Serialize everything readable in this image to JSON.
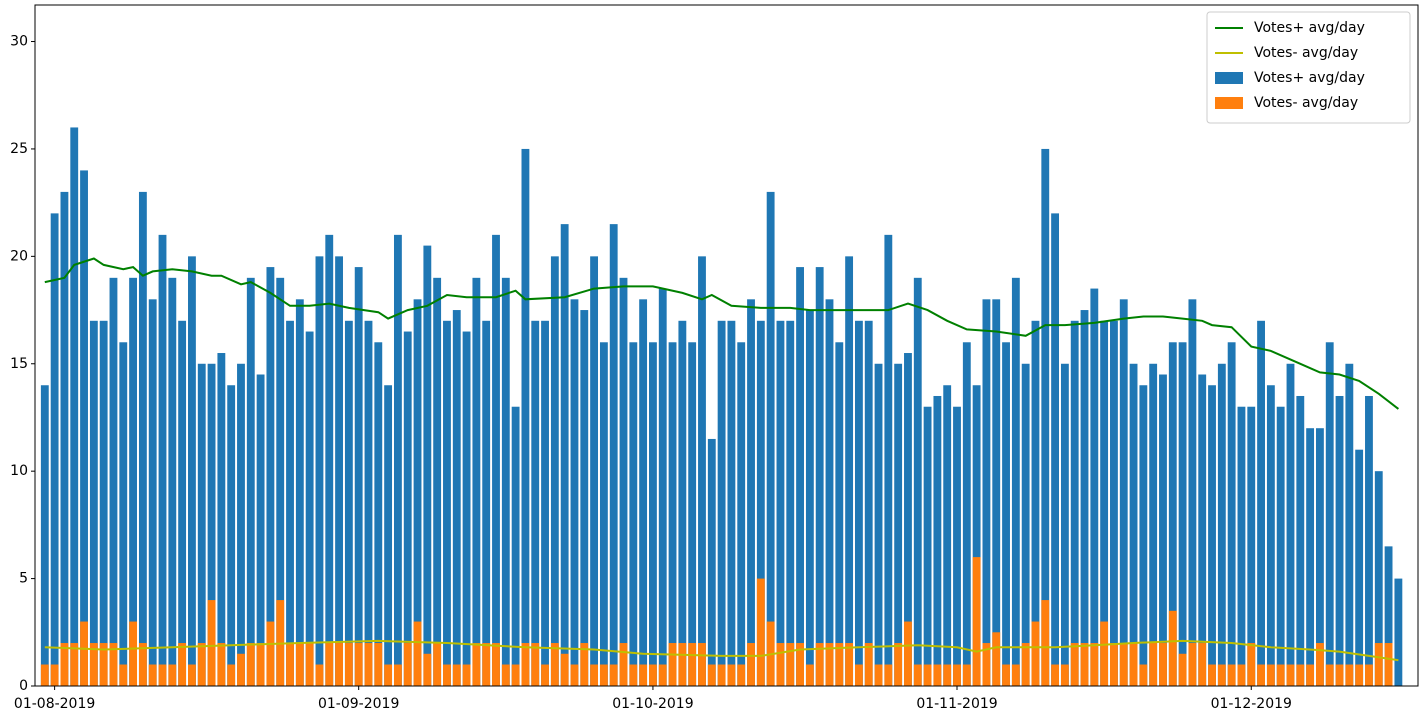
{
  "chart_data": {
    "type": "bar",
    "legend": "upper right",
    "xlim": [
      "30-07-2019",
      "18-12-2019"
    ],
    "xticks": [
      "01-08-2019",
      "01-09-2019",
      "01-10-2019",
      "01-11-2019",
      "01-12-2019"
    ],
    "ylim": [
      0,
      31.7
    ],
    "yticks": [
      0,
      5,
      10,
      15,
      20,
      25,
      30
    ],
    "series": [
      {
        "name": "Votes+ avg/day",
        "type": "line",
        "color": "#008000",
        "x": [
          "31-07-2019",
          "02-08-2019",
          "03-08-2019",
          "05-08-2019",
          "06-08-2019",
          "08-08-2019",
          "09-08-2019",
          "10-08-2019",
          "11-08-2019",
          "13-08-2019",
          "15-08-2019",
          "17-08-2019",
          "18-08-2019",
          "20-08-2019",
          "21-08-2019",
          "23-08-2019",
          "25-08-2019",
          "27-08-2019",
          "29-08-2019",
          "31-08-2019",
          "03-09-2019",
          "04-09-2019",
          "06-09-2019",
          "08-09-2019",
          "10-09-2019",
          "12-09-2019",
          "15-09-2019",
          "17-09-2019",
          "18-09-2019",
          "22-09-2019",
          "25-09-2019",
          "28-09-2019",
          "01-10-2019",
          "04-10-2019",
          "06-10-2019",
          "07-10-2019",
          "09-10-2019",
          "12-10-2019",
          "15-10-2019",
          "17-10-2019",
          "20-10-2019",
          "23-10-2019",
          "25-10-2019",
          "27-10-2019",
          "29-10-2019",
          "31-10-2019",
          "02-11-2019",
          "05-11-2019",
          "08-11-2019",
          "10-11-2019",
          "12-11-2019",
          "15-11-2019",
          "18-11-2019",
          "20-11-2019",
          "22-11-2019",
          "24-11-2019",
          "26-11-2019",
          "27-11-2019",
          "29-11-2019",
          "01-12-2019",
          "03-12-2019",
          "06-12-2019",
          "08-12-2019",
          "10-12-2019",
          "12-12-2019",
          "14-12-2019",
          "16-12-2019"
        ],
        "values": [
          18.8,
          19.0,
          19.6,
          19.9,
          19.6,
          19.4,
          19.5,
          19.1,
          19.3,
          19.4,
          19.3,
          19.1,
          19.1,
          18.7,
          18.8,
          18.3,
          17.7,
          17.7,
          17.8,
          17.6,
          17.4,
          17.1,
          17.5,
          17.7,
          18.2,
          18.1,
          18.1,
          18.4,
          18.0,
          18.1,
          18.5,
          18.6,
          18.6,
          18.3,
          18.0,
          18.2,
          17.7,
          17.6,
          17.6,
          17.5,
          17.5,
          17.5,
          17.5,
          17.8,
          17.5,
          17.0,
          16.6,
          16.5,
          16.3,
          16.8,
          16.8,
          16.9,
          17.1,
          17.2,
          17.2,
          17.1,
          17.0,
          16.8,
          16.7,
          15.8,
          15.6,
          15.0,
          14.6,
          14.5,
          14.2,
          13.6,
          12.9
        ]
      },
      {
        "name": "Votes- avg/day",
        "type": "line",
        "color": "#bfbf00",
        "x": [
          "31-07-2019",
          "06-08-2019",
          "13-08-2019",
          "19-08-2019",
          "26-08-2019",
          "03-09-2019",
          "10-09-2019",
          "18-09-2019",
          "25-09-2019",
          "30-09-2019",
          "08-10-2019",
          "12-10-2019",
          "16-10-2019",
          "22-10-2019",
          "28-10-2019",
          "01-11-2019",
          "03-11-2019",
          "05-11-2019",
          "11-11-2019",
          "15-11-2019",
          "19-11-2019",
          "24-11-2019",
          "29-11-2019",
          "03-12-2019",
          "07-12-2019",
          "10-12-2019",
          "13-12-2019",
          "16-12-2019"
        ],
        "values": [
          1.8,
          1.7,
          1.8,
          1.9,
          2.0,
          2.1,
          2.0,
          1.8,
          1.7,
          1.5,
          1.4,
          1.4,
          1.7,
          1.8,
          1.9,
          1.8,
          1.6,
          1.8,
          1.8,
          1.9,
          2.0,
          2.1,
          2.0,
          1.8,
          1.7,
          1.6,
          1.4,
          1.2
        ]
      },
      {
        "name": "Votes+ avg/day",
        "type": "bar",
        "color": "#1f77b4",
        "x": [
          "31-07-2019",
          "01-08-2019",
          "02-08-2019",
          "03-08-2019",
          "04-08-2019",
          "05-08-2019",
          "06-08-2019",
          "07-08-2019",
          "08-08-2019",
          "09-08-2019",
          "10-08-2019",
          "11-08-2019",
          "12-08-2019",
          "13-08-2019",
          "14-08-2019",
          "15-08-2019",
          "16-08-2019",
          "17-08-2019",
          "18-08-2019",
          "19-08-2019",
          "20-08-2019",
          "21-08-2019",
          "22-08-2019",
          "23-08-2019",
          "24-08-2019",
          "25-08-2019",
          "26-08-2019",
          "27-08-2019",
          "28-08-2019",
          "29-08-2019",
          "30-08-2019",
          "31-08-2019",
          "01-09-2019",
          "02-09-2019",
          "03-09-2019",
          "04-09-2019",
          "05-09-2019",
          "06-09-2019",
          "07-09-2019",
          "08-09-2019",
          "09-09-2019",
          "10-09-2019",
          "11-09-2019",
          "12-09-2019",
          "13-09-2019",
          "14-09-2019",
          "15-09-2019",
          "16-09-2019",
          "17-09-2019",
          "18-09-2019",
          "19-09-2019",
          "20-09-2019",
          "21-09-2019",
          "22-09-2019",
          "23-09-2019",
          "24-09-2019",
          "25-09-2019",
          "26-09-2019",
          "27-09-2019",
          "28-09-2019",
          "29-09-2019",
          "30-09-2019",
          "01-10-2019",
          "02-10-2019",
          "03-10-2019",
          "04-10-2019",
          "05-10-2019",
          "06-10-2019",
          "07-10-2019",
          "08-10-2019",
          "09-10-2019",
          "10-10-2019",
          "11-10-2019",
          "12-10-2019",
          "13-10-2019",
          "14-10-2019",
          "15-10-2019",
          "16-10-2019",
          "17-10-2019",
          "18-10-2019",
          "19-10-2019",
          "20-10-2019",
          "21-10-2019",
          "22-10-2019",
          "23-10-2019",
          "24-10-2019",
          "25-10-2019",
          "26-10-2019",
          "27-10-2019",
          "28-10-2019",
          "29-10-2019",
          "30-10-2019",
          "31-10-2019",
          "01-11-2019",
          "02-11-2019",
          "03-11-2019",
          "04-11-2019",
          "05-11-2019",
          "06-11-2019",
          "07-11-2019",
          "08-11-2019",
          "09-11-2019",
          "10-11-2019",
          "11-11-2019",
          "12-11-2019",
          "13-11-2019",
          "14-11-2019",
          "15-11-2019",
          "16-11-2019",
          "17-11-2019",
          "18-11-2019",
          "19-11-2019",
          "20-11-2019",
          "21-11-2019",
          "22-11-2019",
          "23-11-2019",
          "24-11-2019",
          "25-11-2019",
          "26-11-2019",
          "27-11-2019",
          "28-11-2019",
          "29-11-2019",
          "30-11-2019",
          "01-12-2019",
          "02-12-2019",
          "03-12-2019",
          "04-12-2019",
          "05-12-2019",
          "06-12-2019",
          "07-12-2019",
          "08-12-2019",
          "09-12-2019",
          "10-12-2019",
          "11-12-2019",
          "12-12-2019",
          "13-12-2019",
          "14-12-2019",
          "15-12-2019",
          "16-12-2019"
        ],
        "values": [
          14,
          22,
          23,
          26,
          24,
          17,
          17,
          19,
          16,
          19,
          23,
          18,
          21,
          19,
          17,
          20,
          15,
          15,
          15.5,
          14,
          15,
          19,
          14.5,
          19.5,
          19,
          17,
          18,
          16.5,
          20,
          21,
          20,
          17,
          19.5,
          17,
          16,
          14,
          21,
          16.5,
          18,
          20.5,
          19,
          17,
          17.5,
          16.5,
          19,
          17,
          21,
          19,
          13,
          25,
          17,
          17,
          20,
          21.5,
          18,
          17.5,
          20,
          16,
          21.5,
          19,
          16,
          18,
          16,
          18.5,
          16,
          17,
          16,
          20,
          11.5,
          17,
          17,
          16,
          18,
          17,
          23,
          17,
          17,
          19.5,
          17.5,
          19.5,
          18,
          16,
          20,
          17,
          17,
          15,
          21,
          15,
          15.5,
          19,
          13,
          13.5,
          14,
          13,
          16,
          14,
          18,
          18,
          16,
          19,
          15,
          17,
          25,
          22,
          15,
          17,
          17.5,
          18.5,
          17,
          17,
          18,
          15,
          14,
          15,
          14.5,
          16,
          16,
          18,
          14.5,
          14,
          15,
          16,
          13,
          13,
          17,
          14,
          13,
          15,
          13.5,
          12,
          12,
          16,
          13.5,
          15,
          11,
          13.5,
          10,
          6.5,
          5
        ]
      },
      {
        "name": "Votes- avg/day",
        "type": "bar",
        "color": "#ff7f0e",
        "x": [
          "31-07-2019",
          "01-08-2019",
          "02-08-2019",
          "03-08-2019",
          "04-08-2019",
          "05-08-2019",
          "06-08-2019",
          "07-08-2019",
          "08-08-2019",
          "09-08-2019",
          "10-08-2019",
          "11-08-2019",
          "12-08-2019",
          "13-08-2019",
          "14-08-2019",
          "15-08-2019",
          "16-08-2019",
          "17-08-2019",
          "18-08-2019",
          "19-08-2019",
          "20-08-2019",
          "21-08-2019",
          "22-08-2019",
          "23-08-2019",
          "24-08-2019",
          "25-08-2019",
          "26-08-2019",
          "27-08-2019",
          "28-08-2019",
          "29-08-2019",
          "30-08-2019",
          "31-08-2019",
          "01-09-2019",
          "02-09-2019",
          "03-09-2019",
          "04-09-2019",
          "05-09-2019",
          "06-09-2019",
          "07-09-2019",
          "08-09-2019",
          "09-09-2019",
          "10-09-2019",
          "11-09-2019",
          "12-09-2019",
          "13-09-2019",
          "14-09-2019",
          "15-09-2019",
          "16-09-2019",
          "17-09-2019",
          "18-09-2019",
          "19-09-2019",
          "20-09-2019",
          "21-09-2019",
          "22-09-2019",
          "23-09-2019",
          "24-09-2019",
          "25-09-2019",
          "26-09-2019",
          "27-09-2019",
          "28-09-2019",
          "29-09-2019",
          "30-09-2019",
          "01-10-2019",
          "02-10-2019",
          "03-10-2019",
          "04-10-2019",
          "05-10-2019",
          "06-10-2019",
          "07-10-2019",
          "08-10-2019",
          "09-10-2019",
          "10-10-2019",
          "11-10-2019",
          "12-10-2019",
          "13-10-2019",
          "14-10-2019",
          "15-10-2019",
          "16-10-2019",
          "17-10-2019",
          "18-10-2019",
          "19-10-2019",
          "20-10-2019",
          "21-10-2019",
          "22-10-2019",
          "23-10-2019",
          "24-10-2019",
          "25-10-2019",
          "26-10-2019",
          "27-10-2019",
          "28-10-2019",
          "29-10-2019",
          "30-10-2019",
          "31-10-2019",
          "01-11-2019",
          "02-11-2019",
          "03-11-2019",
          "04-11-2019",
          "05-11-2019",
          "06-11-2019",
          "07-11-2019",
          "08-11-2019",
          "09-11-2019",
          "10-11-2019",
          "11-11-2019",
          "12-11-2019",
          "13-11-2019",
          "14-11-2019",
          "15-11-2019",
          "16-11-2019",
          "17-11-2019",
          "18-11-2019",
          "19-11-2019",
          "20-11-2019",
          "21-11-2019",
          "22-11-2019",
          "23-11-2019",
          "24-11-2019",
          "25-11-2019",
          "26-11-2019",
          "27-11-2019",
          "28-11-2019",
          "29-11-2019",
          "30-11-2019",
          "01-12-2019",
          "02-12-2019",
          "03-12-2019",
          "04-12-2019",
          "05-12-2019",
          "06-12-2019",
          "07-12-2019",
          "08-12-2019",
          "09-12-2019",
          "10-12-2019",
          "11-12-2019",
          "12-12-2019",
          "13-12-2019",
          "14-12-2019",
          "15-12-2019",
          "16-12-2019"
        ],
        "values": [
          1,
          1,
          2,
          2,
          3,
          2,
          2,
          2,
          1,
          3,
          2,
          1,
          1,
          1,
          2,
          1,
          2,
          4,
          2,
          1,
          1.5,
          2,
          2,
          3,
          4,
          2,
          2,
          2,
          1,
          2,
          2,
          2,
          2,
          2,
          2,
          1,
          1,
          2,
          3,
          1.5,
          2,
          1,
          1,
          1,
          2,
          2,
          2,
          1,
          1,
          2,
          2,
          1,
          2,
          1.5,
          1,
          2,
          1,
          1,
          1,
          2,
          1,
          1,
          1,
          1,
          2,
          2,
          2,
          2,
          1,
          1,
          1,
          1,
          2,
          5,
          3,
          2,
          2,
          2,
          1,
          2,
          2,
          2,
          2,
          1,
          2,
          1,
          1,
          2,
          3,
          1,
          1,
          1,
          1,
          1,
          1,
          6,
          2,
          2.5,
          1,
          1,
          2,
          3,
          4,
          1,
          1,
          2,
          2,
          2,
          3,
          2,
          2,
          2,
          1,
          2,
          2,
          3.5,
          1.5,
          2,
          2,
          1,
          1,
          1,
          1,
          2,
          1,
          1,
          1,
          1,
          1,
          1,
          2,
          1,
          1,
          1,
          1,
          1,
          2,
          2,
          0
        ]
      }
    ]
  }
}
